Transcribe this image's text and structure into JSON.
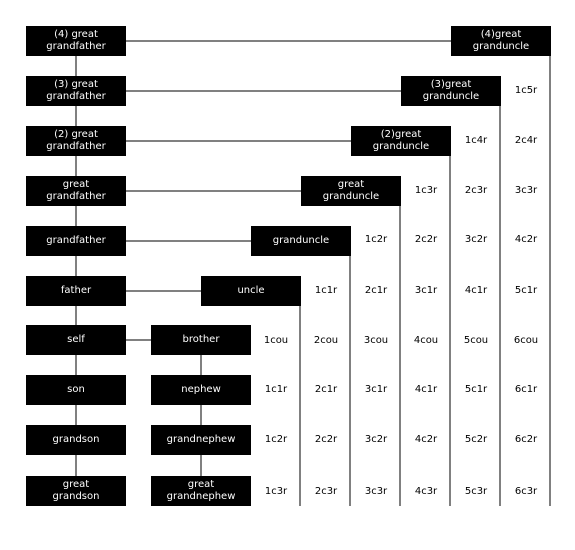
{
  "colors": {
    "box_fill": "#000000",
    "box_text": "#ffffff",
    "line": "#000000",
    "text": "#000000"
  },
  "ancestors": [
    "(4) great\ngrandfather",
    "(3) great\ngrandfather",
    "(2) great\ngrandfather",
    "great\ngrandfather",
    "grandfather",
    "father",
    "self",
    "son",
    "grandson",
    "great\ngrandson"
  ],
  "uncles": [
    "(4)great\ngranduncle",
    "(3)great\ngranduncle",
    "(2)great\ngranduncle",
    "great\ngranduncle",
    "granduncle",
    "uncle"
  ],
  "siblings": [
    "brother",
    "nephew",
    "grandnephew",
    "great\ngrandnephew"
  ],
  "relationship_table": [
    [
      "",
      "",
      "",
      "",
      "",
      "",
      ""
    ],
    [
      "",
      "",
      "",
      "",
      "",
      "",
      "1c5r"
    ],
    [
      "",
      "",
      "",
      "",
      "",
      "1c4r",
      "2c4r"
    ],
    [
      "",
      "",
      "",
      "",
      "1c3r",
      "2c3r",
      "3c3r"
    ],
    [
      "",
      "",
      "",
      "1c2r",
      "2c2r",
      "3c2r",
      "4c2r"
    ],
    [
      "",
      "",
      "1c1r",
      "2c1r",
      "3c1r",
      "4c1r",
      "5c1r"
    ],
    [
      "",
      "1cou",
      "2cou",
      "3cou",
      "4cou",
      "5cou",
      "6cou"
    ],
    [
      "",
      "1c1r",
      "2c1r",
      "3c1r",
      "4c1r",
      "5c1r",
      "6c1r"
    ],
    [
      "",
      "1c2r",
      "2c2r",
      "3c2r",
      "4c2r",
      "5c2r",
      "6c2r"
    ],
    [
      "",
      "1c3r",
      "2c3r",
      "3c3r",
      "4c3r",
      "5c3r",
      "6c3r"
    ]
  ]
}
